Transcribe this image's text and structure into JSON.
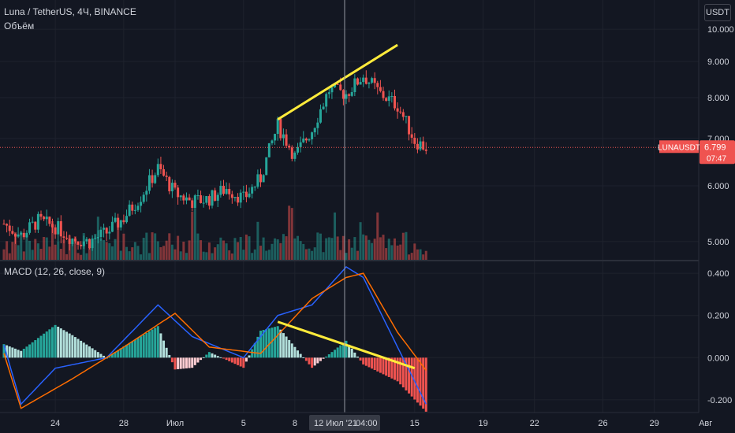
{
  "header": {
    "symbol": "Luna / TetherUS, 4Ч, BINANCE",
    "volume_label": "Объём",
    "macd_label": "MACD (12, 26, close, 9)",
    "currency_button": "USDT"
  },
  "price_tag": {
    "ticker": "LUNAUSDT",
    "price": "6.799",
    "countdown": "07:47",
    "price_value": 6.799
  },
  "crosshair": {
    "date_label": "12 Июл '21",
    "time_label": "04:00"
  },
  "colors": {
    "background": "#131722",
    "up": "#26a69a",
    "down": "#ef5350",
    "macd_line": "#2962ff",
    "signal_line": "#ff6d00",
    "trendline": "#ffeb3b",
    "grid": "#1e222d",
    "price_tag": "#ef5350"
  },
  "chart_data": [
    {
      "type": "candlestick",
      "title": "Luna / TetherUS, 4Ч, BINANCE",
      "price_scale": "log",
      "ylim": [
        4.7,
        11.0
      ],
      "y_ticks": [
        "10.000",
        "9.000",
        "8.000",
        "7.000",
        "6.000",
        "5.000"
      ],
      "x_ticks": [
        "24",
        "28",
        "Июл",
        "5",
        "8",
        "12 Июл '21",
        "15",
        "19",
        "22",
        "26",
        "29",
        "Авг"
      ],
      "grid": true,
      "trendline": {
        "from": {
          "date": "2021-07-07",
          "price": 7.45
        },
        "to": {
          "date": "2021-07-14",
          "price": 9.5
        }
      },
      "series": [
        {
          "name": "OHLC (approx, 4h)",
          "anchors": [
            {
              "date": "2021-06-21",
              "close": 5.3
            },
            {
              "date": "2021-06-22",
              "close": 5.1
            },
            {
              "date": "2021-06-23",
              "close": 5.35
            },
            {
              "date": "2021-06-24",
              "close": 5.25
            },
            {
              "date": "2021-06-25",
              "close": 5.05
            },
            {
              "date": "2021-06-26",
              "close": 5.0
            },
            {
              "date": "2021-06-27",
              "close": 5.15
            },
            {
              "date": "2021-06-28",
              "close": 5.4
            },
            {
              "date": "2021-06-29",
              "close": 5.8
            },
            {
              "date": "2021-06-30",
              "close": 6.35
            },
            {
              "date": "2021-07-01",
              "close": 5.85
            },
            {
              "date": "2021-07-02",
              "close": 5.7
            },
            {
              "date": "2021-07-03",
              "close": 5.75
            },
            {
              "date": "2021-07-04",
              "close": 5.95
            },
            {
              "date": "2021-07-05",
              "close": 5.75
            },
            {
              "date": "2021-07-06",
              "close": 6.15
            },
            {
              "date": "2021-07-07",
              "close": 7.3
            },
            {
              "date": "2021-07-08",
              "close": 6.6
            },
            {
              "date": "2021-07-09",
              "close": 7.2
            },
            {
              "date": "2021-07-10",
              "close": 8.2
            },
            {
              "date": "2021-07-11",
              "close": 8.1
            },
            {
              "date": "2021-07-12",
              "close": 8.6
            },
            {
              "date": "2021-07-13",
              "close": 8.1
            },
            {
              "date": "2021-07-14",
              "close": 7.8
            },
            {
              "date": "2021-07-15",
              "close": 6.95
            },
            {
              "date": "2021-07-15T16:00",
              "close": 6.799
            }
          ]
        }
      ]
    },
    {
      "type": "bar",
      "title": "Объём",
      "note": "volume histogram, colored by candle direction"
    },
    {
      "type": "line",
      "title": "MACD (12, 26, close, 9)",
      "ylim": [
        -0.26,
        0.46
      ],
      "y_ticks": [
        "0.400",
        "0.200",
        "0.000",
        "-0.200"
      ],
      "trendline": {
        "from": {
          "date": "2021-07-07",
          "value": 0.17
        },
        "to": {
          "date": "2021-07-15",
          "value": -0.05
        }
      },
      "series": [
        {
          "name": "MACD",
          "anchors": [
            {
              "date": "2021-06-21",
              "value": 0.06
            },
            {
              "date": "2021-06-22",
              "value": -0.22
            },
            {
              "date": "2021-06-24",
              "value": -0.05
            },
            {
              "date": "2021-06-27",
              "value": 0.0
            },
            {
              "date": "2021-06-30",
              "value": 0.25
            },
            {
              "date": "2021-07-02",
              "value": 0.1
            },
            {
              "date": "2021-07-05",
              "value": 0.0
            },
            {
              "date": "2021-07-07",
              "value": 0.2
            },
            {
              "date": "2021-07-09",
              "value": 0.25
            },
            {
              "date": "2021-07-11",
              "value": 0.43
            },
            {
              "date": "2021-07-12",
              "value": 0.38
            },
            {
              "date": "2021-07-14",
              "value": 0.05
            },
            {
              "date": "2021-07-15T16:00",
              "value": -0.22
            }
          ]
        },
        {
          "name": "Signal",
          "anchors": [
            {
              "date": "2021-06-21",
              "value": 0.02
            },
            {
              "date": "2021-06-22",
              "value": -0.24
            },
            {
              "date": "2021-06-25",
              "value": -0.1
            },
            {
              "date": "2021-06-28",
              "value": 0.05
            },
            {
              "date": "2021-07-01",
              "value": 0.21
            },
            {
              "date": "2021-07-03",
              "value": 0.05
            },
            {
              "date": "2021-07-06",
              "value": 0.02
            },
            {
              "date": "2021-07-09",
              "value": 0.28
            },
            {
              "date": "2021-07-11",
              "value": 0.38
            },
            {
              "date": "2021-07-12",
              "value": 0.4
            },
            {
              "date": "2021-07-14",
              "value": 0.12
            },
            {
              "date": "2021-07-15T16:00",
              "value": -0.06
            }
          ]
        },
        {
          "name": "Histogram",
          "note": "MACD minus Signal, teal above zero, red below"
        }
      ]
    }
  ]
}
